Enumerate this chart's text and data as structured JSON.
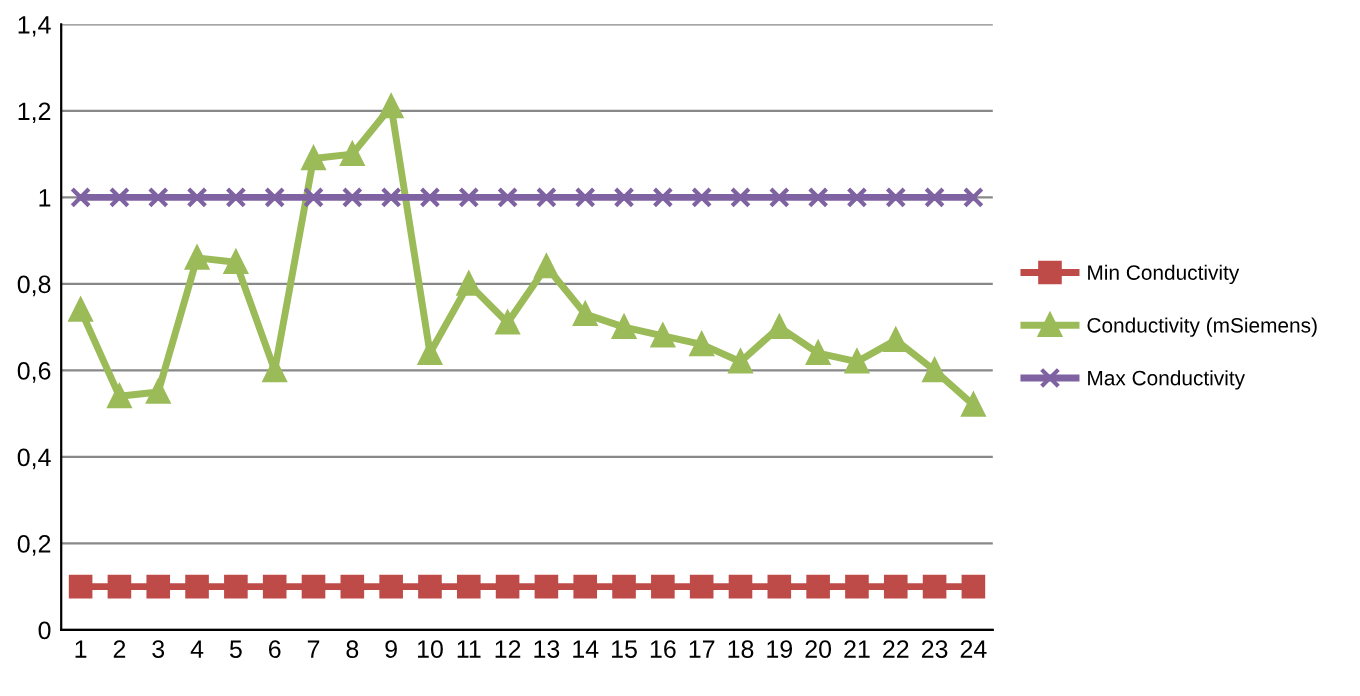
{
  "chart_data": {
    "type": "line",
    "categories": [
      "1",
      "2",
      "3",
      "4",
      "5",
      "6",
      "7",
      "8",
      "9",
      "10",
      "11",
      "12",
      "13",
      "14",
      "15",
      "16",
      "17",
      "18",
      "19",
      "20",
      "21",
      "22",
      "23",
      "24"
    ],
    "series": [
      {
        "name": "Min Conductivity",
        "color": "#be4b48",
        "marker": "square",
        "values": [
          0.1,
          0.1,
          0.1,
          0.1,
          0.1,
          0.1,
          0.1,
          0.1,
          0.1,
          0.1,
          0.1,
          0.1,
          0.1,
          0.1,
          0.1,
          0.1,
          0.1,
          0.1,
          0.1,
          0.1,
          0.1,
          0.1,
          0.1,
          0.1
        ]
      },
      {
        "name": "Conductivity (mSiemens)",
        "color": "#9bbb59",
        "marker": "triangle",
        "values": [
          0.74,
          0.54,
          0.55,
          0.86,
          0.85,
          0.6,
          1.09,
          1.1,
          1.21,
          0.64,
          0.8,
          0.71,
          0.84,
          0.73,
          0.7,
          0.68,
          0.66,
          0.62,
          0.7,
          0.64,
          0.62,
          0.67,
          0.6,
          0.52
        ]
      },
      {
        "name": "Max Conductivity",
        "color": "#7e62a1",
        "marker": "cross",
        "values": [
          1,
          1,
          1,
          1,
          1,
          1,
          1,
          1,
          1,
          1,
          1,
          1,
          1,
          1,
          1,
          1,
          1,
          1,
          1,
          1,
          1,
          1,
          1,
          1
        ]
      }
    ],
    "ylim": [
      0,
      1.4
    ],
    "yticks": [
      0,
      {
        "value": 0.2,
        "label": "0,2"
      },
      {
        "value": 0.4,
        "label": "0,4"
      },
      {
        "value": 0.6,
        "label": "0,6"
      },
      {
        "value": 0.8,
        "label": "0,8"
      },
      1,
      {
        "value": 1.2,
        "label": "1,2"
      },
      {
        "value": 1.4,
        "label": "1,4"
      }
    ],
    "grid": "y",
    "legend": "right"
  }
}
